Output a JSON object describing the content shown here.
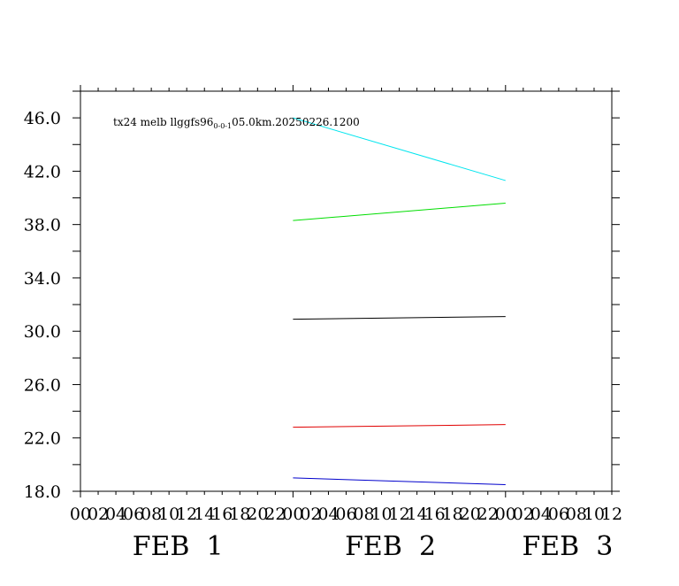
{
  "chart_data": {
    "type": "line",
    "title": "tx24 melb llggfs96",
    "title_sub": "0-0-1",
    "title_tail": "05.0km.20250226.1200",
    "x_unit": "hour",
    "x_range": [
      0,
      60
    ],
    "x_tick_labels": [
      "00",
      "02",
      "04",
      "06",
      "08",
      "10",
      "12",
      "14",
      "16",
      "18",
      "20",
      "22",
      "00",
      "02",
      "04",
      "06",
      "08",
      "10",
      "12",
      "14",
      "16",
      "18",
      "20",
      "22",
      "00",
      "02",
      "04",
      "06",
      "08",
      "10",
      "12"
    ],
    "date_labels": [
      {
        "text": "FEB  1",
        "x": 11
      },
      {
        "text": "FEB  2",
        "x": 35
      },
      {
        "text": "FEB  3",
        "x": 55
      }
    ],
    "ylim": [
      18.0,
      48.0
    ],
    "y_ticks": [
      18.0,
      22.0,
      26.0,
      30.0,
      34.0,
      38.0,
      42.0,
      46.0
    ],
    "y_tick_labels": [
      "18.0",
      "22.0",
      "26.0",
      "30.0",
      "34.0",
      "38.0",
      "42.0",
      "46.0"
    ],
    "series": [
      {
        "color": "#00e5ee",
        "x": [
          24,
          48
        ],
        "y": [
          46.0,
          41.3
        ]
      },
      {
        "color": "#00dd00",
        "x": [
          24,
          48
        ],
        "y": [
          38.3,
          39.6
        ]
      },
      {
        "color": "#000000",
        "x": [
          24,
          48
        ],
        "y": [
          30.9,
          31.1
        ]
      },
      {
        "color": "#e00000",
        "x": [
          24,
          48
        ],
        "y": [
          22.8,
          23.0
        ]
      },
      {
        "color": "#0000cc",
        "x": [
          24,
          48
        ],
        "y": [
          19.0,
          18.5
        ]
      }
    ]
  }
}
